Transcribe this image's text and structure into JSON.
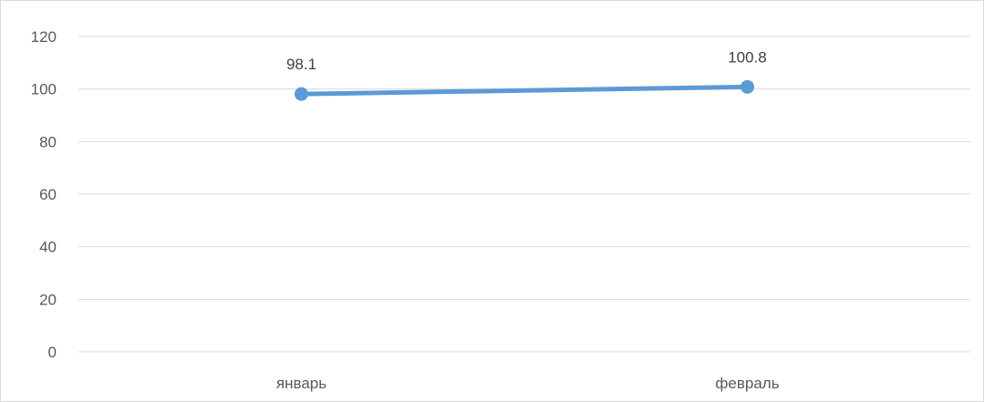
{
  "chart_data": {
    "type": "line",
    "title": "",
    "xlabel": "",
    "ylabel": "",
    "categories": [
      "январь",
      "февраль"
    ],
    "series": [
      {
        "values": [
          98.1,
          100.8
        ],
        "color": "#5b9bd5",
        "data_labels": [
          "98.1",
          "100.8"
        ]
      }
    ],
    "ylim": [
      0,
      120
    ],
    "yticks": [
      0,
      20,
      40,
      60,
      80,
      100,
      120
    ],
    "ytick_labels": [
      "0",
      "20",
      "40",
      "60",
      "80",
      "100",
      "120"
    ],
    "grid": true,
    "legend": "none",
    "colors": {
      "grid": "#d9d9d9",
      "tick_text": "#595959",
      "line": "#5b9bd5"
    }
  }
}
